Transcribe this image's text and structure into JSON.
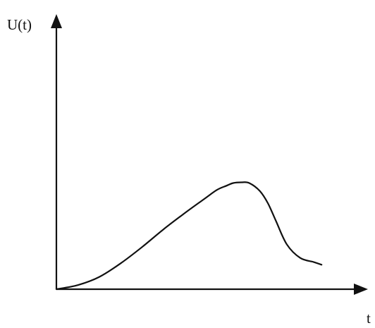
{
  "chart_data": {
    "type": "line",
    "title": "",
    "ylabel": "U(t)",
    "xlabel": "t",
    "grid": false,
    "tick_labels": false,
    "xlim": [
      0,
      100
    ],
    "ylim": [
      0,
      100
    ],
    "series": [
      {
        "color": "#111111",
        "x": [
          0,
          8,
          16,
          24,
          32,
          40,
          48,
          55,
          60,
          63.5,
          66,
          69,
          72,
          76,
          79,
          82,
          86,
          91,
          96,
          99
        ],
        "y": [
          0,
          3,
          9,
          19,
          31,
          44,
          56,
          66,
          73,
          76,
          78,
          78.5,
          78,
          72,
          63,
          50,
          33,
          23,
          20,
          18
        ]
      }
    ]
  }
}
